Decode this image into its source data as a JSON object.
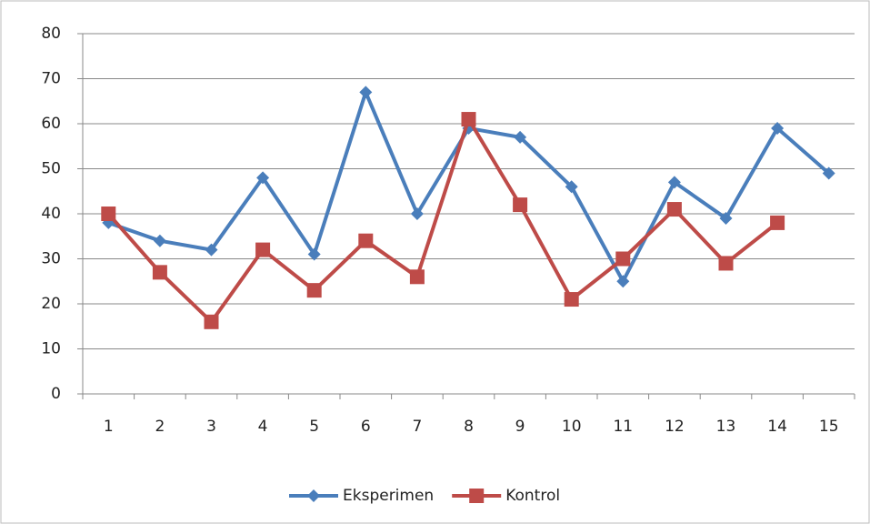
{
  "chart_data": {
    "type": "line",
    "categories": [
      "1",
      "2",
      "3",
      "4",
      "5",
      "6",
      "7",
      "8",
      "9",
      "10",
      "11",
      "12",
      "13",
      "14",
      "15"
    ],
    "series": [
      {
        "name": "Eksperimen",
        "color": "#4a7ebb",
        "marker": "diamond",
        "values": [
          38,
          34,
          32,
          48,
          31,
          67,
          40,
          59,
          57,
          46,
          25,
          47,
          39,
          59,
          49
        ]
      },
      {
        "name": "Kontrol",
        "color": "#be4b48",
        "marker": "square",
        "values": [
          40,
          27,
          16,
          32,
          23,
          34,
          26,
          61,
          42,
          21,
          30,
          41,
          29,
          38,
          null
        ]
      }
    ],
    "ylim": [
      0,
      80
    ],
    "yticks": [
      0,
      10,
      20,
      30,
      40,
      50,
      60,
      70,
      80
    ],
    "grid": true,
    "legend": "bottom"
  }
}
